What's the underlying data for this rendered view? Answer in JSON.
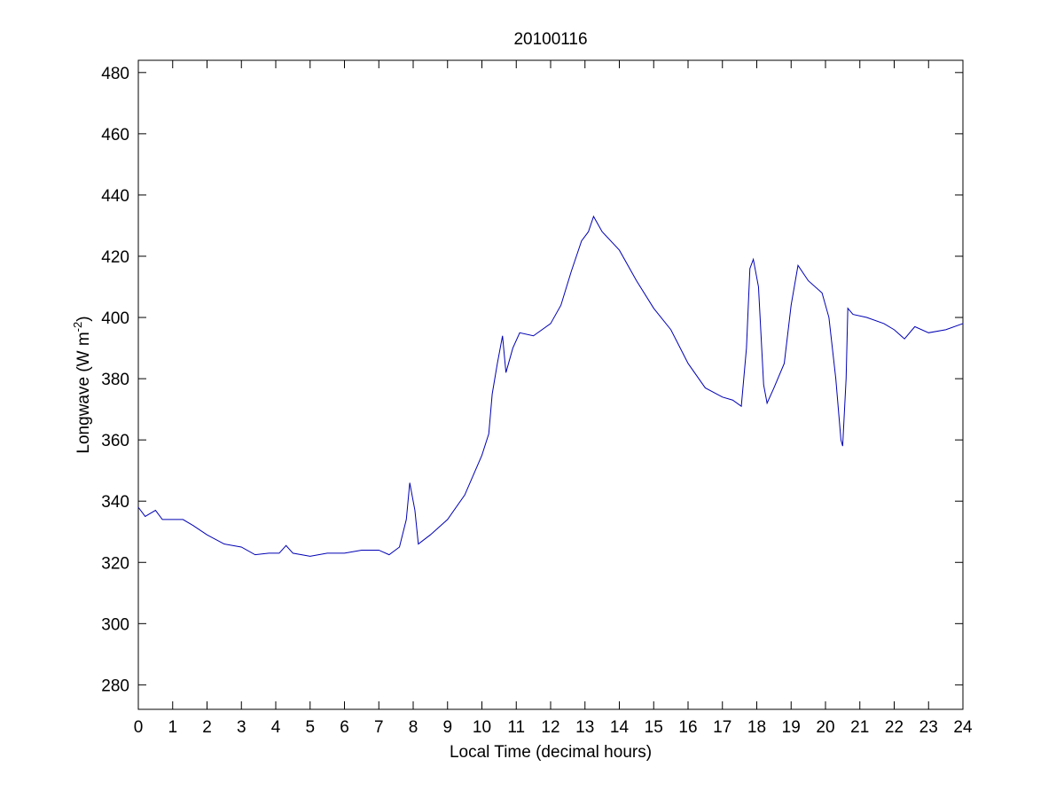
{
  "chart_data": {
    "type": "line",
    "title": "20100116",
    "xlabel": "Local Time (decimal hours)",
    "ylabel": {
      "text": "Longwave (W m",
      "sup": "-2",
      "end": ")"
    },
    "xlim": [
      0,
      24
    ],
    "xticks": [
      0,
      1,
      2,
      3,
      4,
      5,
      6,
      7,
      8,
      9,
      10,
      11,
      12,
      13,
      14,
      15,
      16,
      17,
      18,
      19,
      20,
      21,
      22,
      23,
      24
    ],
    "ylim": [
      272,
      484
    ],
    "yticks": [
      280,
      300,
      320,
      340,
      360,
      380,
      400,
      420,
      440,
      460,
      480
    ],
    "grid": false,
    "series": [
      {
        "color": "#0000b4",
        "x": [
          0,
          0.2,
          0.5,
          0.7,
          1.0,
          1.3,
          1.6,
          2.0,
          2.5,
          3.0,
          3.4,
          3.8,
          4.1,
          4.3,
          4.5,
          5.0,
          5.5,
          6.0,
          6.5,
          7.0,
          7.3,
          7.6,
          7.8,
          7.9,
          8.05,
          8.15,
          8.5,
          9.0,
          9.5,
          10.0,
          10.2,
          10.3,
          10.45,
          10.6,
          10.7,
          10.9,
          11.1,
          11.5,
          12.0,
          12.3,
          12.6,
          12.9,
          13.1,
          13.25,
          13.5,
          14.0,
          14.5,
          15.0,
          15.5,
          16.0,
          16.5,
          17.0,
          17.3,
          17.55,
          17.7,
          17.8,
          17.9,
          18.05,
          18.2,
          18.3,
          18.5,
          18.8,
          19.0,
          19.2,
          19.5,
          19.9,
          20.1,
          20.3,
          20.45,
          20.5,
          20.6,
          20.65,
          20.8,
          21.2,
          21.7,
          22.0,
          22.3,
          22.6,
          23.0,
          23.5,
          24.0
        ],
        "values": [
          338,
          335,
          337,
          334,
          334,
          334,
          332,
          329,
          326,
          325,
          322.5,
          323,
          323,
          325.5,
          323,
          322,
          323,
          323,
          324,
          324,
          322.5,
          325,
          334,
          346,
          337,
          326,
          329,
          334,
          342,
          355,
          362,
          375,
          385,
          394,
          382,
          390,
          395,
          394,
          398,
          404,
          415,
          425,
          428,
          433,
          428,
          422,
          412,
          403,
          396,
          385,
          377,
          374,
          373,
          371,
          390,
          416,
          419,
          410,
          378,
          372,
          377,
          385,
          404,
          417,
          412,
          408,
          400,
          380,
          360,
          358,
          380,
          403,
          401,
          400,
          398,
          396,
          393,
          397,
          395,
          396,
          398
        ]
      }
    ]
  }
}
